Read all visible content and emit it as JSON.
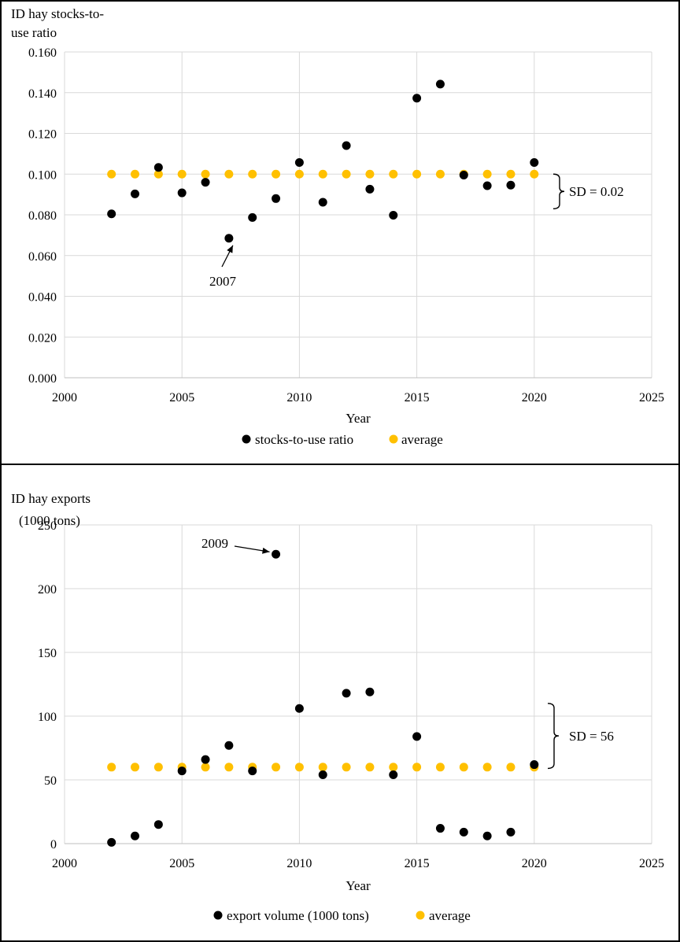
{
  "chart_data": [
    {
      "type": "scatter",
      "ylabel_lines": [
        "ID hay stocks-to-",
        "use ratio"
      ],
      "xlabel": "Year",
      "xlim": [
        2000,
        2025
      ],
      "ylim": [
        0,
        0.16
      ],
      "x_ticks": [
        2000,
        2005,
        2010,
        2015,
        2020,
        2025
      ],
      "y_ticks": [
        "0.000",
        "0.020",
        "0.040",
        "0.060",
        "0.080",
        "0.100",
        "0.120",
        "0.140",
        "0.160"
      ],
      "grid": true,
      "legend_position": "bottom",
      "series": [
        {
          "name": "stocks-to-use ratio",
          "color": "#000000",
          "x": [
            2002,
            2003,
            2004,
            2005,
            2006,
            2007,
            2008,
            2009,
            2010,
            2011,
            2012,
            2013,
            2014,
            2015,
            2016,
            2017,
            2018,
            2019,
            2020
          ],
          "y": [
            0.0805,
            0.0903,
            0.1033,
            0.0908,
            0.096,
            0.0685,
            0.0787,
            0.088,
            0.1057,
            0.0862,
            0.114,
            0.0926,
            0.0798,
            0.1373,
            0.1442,
            0.0995,
            0.0943,
            0.0946,
            0.1057
          ]
        },
        {
          "name": "average",
          "color": "#FFC000",
          "x": [
            2002,
            2003,
            2004,
            2005,
            2006,
            2007,
            2008,
            2009,
            2010,
            2011,
            2012,
            2013,
            2014,
            2015,
            2016,
            2017,
            2018,
            2019,
            2020
          ],
          "y": [
            0.1,
            0.1,
            0.1,
            0.1,
            0.1,
            0.1,
            0.1,
            0.1,
            0.1,
            0.1,
            0.1,
            0.1,
            0.1,
            0.1,
            0.1,
            0.1,
            0.1,
            0.1,
            0.1
          ]
        }
      ],
      "annotations": [
        {
          "text": "2007",
          "x": 2007,
          "y": 0.0685
        },
        {
          "text": "SD = 0.02",
          "y_range": [
            0.083,
            0.1
          ]
        }
      ]
    },
    {
      "type": "scatter",
      "ylabel_lines": [
        "ID hay exports",
        "(1000 tons)"
      ],
      "xlabel": "Year",
      "xlim": [
        2000,
        2025
      ],
      "ylim": [
        0,
        250
      ],
      "x_ticks": [
        2000,
        2005,
        2010,
        2015,
        2020,
        2025
      ],
      "y_ticks": [
        "0",
        "50",
        "100",
        "150",
        "200",
        "250"
      ],
      "grid": true,
      "legend_position": "bottom",
      "series": [
        {
          "name": "export volume (1000 tons)",
          "color": "#000000",
          "x": [
            2002,
            2003,
            2004,
            2005,
            2006,
            2007,
            2008,
            2009,
            2010,
            2011,
            2012,
            2013,
            2014,
            2015,
            2016,
            2017,
            2018,
            2019,
            2020
          ],
          "y": [
            1,
            6,
            15,
            57,
            66,
            77,
            57,
            227,
            106,
            54,
            118,
            119,
            54,
            84,
            12,
            9,
            6,
            9,
            62
          ]
        },
        {
          "name": "average",
          "color": "#FFC000",
          "x": [
            2002,
            2003,
            2004,
            2005,
            2006,
            2007,
            2008,
            2009,
            2010,
            2011,
            2012,
            2013,
            2014,
            2015,
            2016,
            2017,
            2018,
            2019,
            2020
          ],
          "y": [
            60,
            60,
            60,
            60,
            60,
            60,
            60,
            60,
            60,
            60,
            60,
            60,
            60,
            60,
            60,
            60,
            60,
            60,
            60
          ]
        }
      ],
      "annotations": [
        {
          "text": "2009",
          "x": 2009,
          "y": 227
        },
        {
          "text": "SD = 56",
          "y_range": [
            59,
            110
          ]
        }
      ]
    }
  ]
}
